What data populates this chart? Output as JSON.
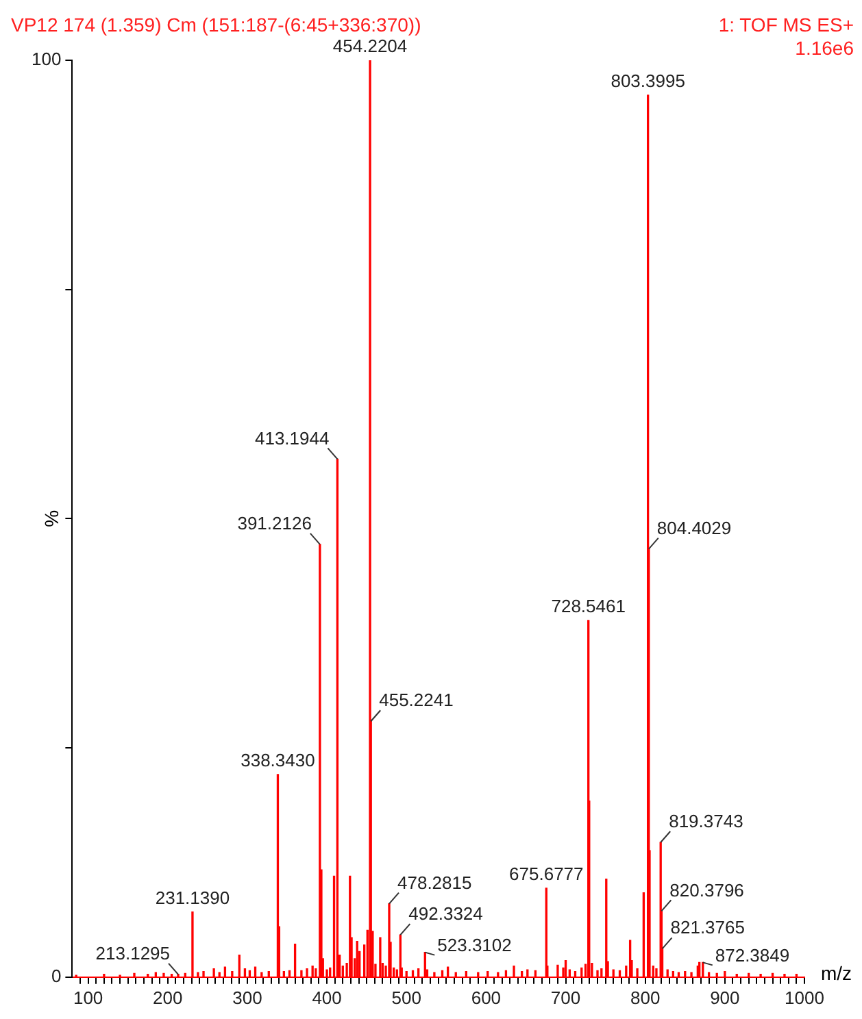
{
  "chart_data": {
    "type": "bar",
    "title": "VP12 174 (1.359) Cm (151:187-(6:45+336:370))",
    "xlabel": "m/z",
    "ylabel": "%",
    "color": "#ff0000",
    "x": [
      85,
      120,
      140,
      158,
      175,
      185,
      195,
      205,
      213.1295,
      222,
      231.139,
      238,
      245,
      258,
      265,
      272,
      281,
      290,
      297,
      303,
      310,
      318,
      327,
      338.343,
      340,
      346,
      353,
      360,
      368,
      375,
      382,
      386,
      391.2126,
      393,
      395,
      400,
      404,
      409,
      413.1944,
      416,
      420,
      425,
      429,
      431,
      435,
      438,
      441,
      447,
      451,
      454.2204,
      455.2241,
      457.5,
      461,
      467,
      470,
      474,
      478.2815,
      480,
      484,
      488,
      492.3324,
      494,
      500,
      508,
      515,
      523.3102,
      526,
      535,
      545,
      552,
      562,
      575,
      590,
      602,
      615,
      625,
      635,
      645,
      652,
      662,
      675.6777,
      677,
      690,
      697,
      700,
      705,
      712,
      720,
      725,
      728.5461,
      729.5,
      733,
      740,
      745,
      751,
      753,
      760,
      768,
      776,
      781,
      783,
      790,
      798,
      803.3995,
      804.4029,
      805.4,
      810,
      814,
      819.3743,
      820.3796,
      821.3765,
      828,
      835,
      842,
      850,
      858,
      866,
      868,
      872.3849,
      880,
      890,
      900,
      915,
      930,
      945,
      960,
      975,
      990
    ],
    "values": [
      0.2,
      0.3,
      0.2,
      0.4,
      0.3,
      0.5,
      0.4,
      0.3,
      0.3,
      0.4,
      7.1,
      0.5,
      0.6,
      0.9,
      0.5,
      1.1,
      0.6,
      2.4,
      0.9,
      0.7,
      1.1,
      0.5,
      0.6,
      22.1,
      5.5,
      0.6,
      0.7,
      3.6,
      0.7,
      0.9,
      1.2,
      0.9,
      47.2,
      11.7,
      2.0,
      0.8,
      1.0,
      11.0,
      56.5,
      2.4,
      1.2,
      1.5,
      11.0,
      4.3,
      2.0,
      3.9,
      2.8,
      3.5,
      5.1,
      100,
      27.9,
      5.0,
      1.4,
      4.3,
      1.5,
      1.2,
      8.0,
      3.8,
      1.0,
      0.8,
      4.6,
      1.0,
      0.6,
      0.7,
      0.9,
      2.7,
      0.8,
      0.5,
      0.7,
      1.1,
      0.5,
      0.6,
      0.5,
      0.6,
      0.5,
      0.7,
      1.2,
      0.6,
      0.8,
      0.7,
      9.7,
      1.2,
      1.3,
      1.0,
      1.8,
      0.8,
      0.6,
      1.0,
      1.4,
      38.9,
      19.2,
      1.5,
      0.7,
      0.9,
      10.7,
      1.7,
      0.8,
      0.7,
      1.2,
      4.0,
      1.8,
      0.9,
      9.2,
      96.2,
      46.7,
      13.8,
      1.2,
      0.9,
      14.7,
      7.2,
      3.1,
      0.8,
      0.6,
      0.5,
      0.6,
      0.5,
      1.2,
      1.6,
      1.6,
      0.5,
      0.4,
      0.6,
      0.3,
      0.4,
      0.3,
      0.4,
      0.3,
      0.3
    ],
    "xlim": [
      80,
      1000
    ],
    "xticks": [
      {
        "value": 90,
        "label": null
      },
      100,
      {
        "value": 110,
        "label": null
      },
      {
        "value": 120,
        "label": null
      },
      {
        "value": 130,
        "label": null
      },
      {
        "value": 140,
        "label": null
      },
      {
        "value": 150,
        "label": null
      },
      {
        "value": 160,
        "label": null
      },
      {
        "value": 170,
        "label": null
      },
      {
        "value": 180,
        "label": null
      },
      {
        "value": 190,
        "label": null
      },
      200,
      {
        "value": 210,
        "label": null
      },
      {
        "value": 220,
        "label": null
      },
      {
        "value": 230,
        "label": null
      },
      {
        "value": 240,
        "label": null
      },
      {
        "value": 250,
        "label": null
      },
      {
        "value": 260,
        "label": null
      },
      {
        "value": 270,
        "label": null
      },
      {
        "value": 280,
        "label": null
      },
      {
        "value": 290,
        "label": null
      },
      300,
      {
        "value": 310,
        "label": null
      },
      {
        "value": 320,
        "label": null
      },
      {
        "value": 330,
        "label": null
      },
      {
        "value": 340,
        "label": null
      },
      {
        "value": 350,
        "label": null
      },
      {
        "value": 360,
        "label": null
      },
      {
        "value": 370,
        "label": null
      },
      {
        "value": 380,
        "label": null
      },
      {
        "value": 390,
        "label": null
      },
      400,
      {
        "value": 410,
        "label": null
      },
      {
        "value": 420,
        "label": null
      },
      {
        "value": 430,
        "label": null
      },
      {
        "value": 440,
        "label": null
      },
      {
        "value": 450,
        "label": null
      },
      {
        "value": 460,
        "label": null
      },
      {
        "value": 470,
        "label": null
      },
      {
        "value": 480,
        "label": null
      },
      {
        "value": 490,
        "label": null
      },
      500,
      {
        "value": 510,
        "label": null
      },
      {
        "value": 520,
        "label": null
      },
      {
        "value": 530,
        "label": null
      },
      {
        "value": 540,
        "label": null
      },
      {
        "value": 550,
        "label": null
      },
      {
        "value": 560,
        "label": null
      },
      {
        "value": 570,
        "label": null
      },
      {
        "value": 580,
        "label": null
      },
      {
        "value": 590,
        "label": null
      },
      600,
      {
        "value": 610,
        "label": null
      },
      {
        "value": 620,
        "label": null
      },
      {
        "value": 630,
        "label": null
      },
      {
        "value": 640,
        "label": null
      },
      {
        "value": 650,
        "label": null
      },
      {
        "value": 660,
        "label": null
      },
      {
        "value": 670,
        "label": null
      },
      {
        "value": 680,
        "label": null
      },
      {
        "value": 690,
        "label": null
      },
      700,
      {
        "value": 710,
        "label": null
      },
      {
        "value": 720,
        "label": null
      },
      {
        "value": 730,
        "label": null
      },
      {
        "value": 740,
        "label": null
      },
      {
        "value": 750,
        "label": null
      },
      {
        "value": 760,
        "label": null
      },
      {
        "value": 770,
        "label": null
      },
      {
        "value": 780,
        "label": null
      },
      {
        "value": 790,
        "label": null
      },
      800,
      {
        "value": 810,
        "label": null
      },
      {
        "value": 820,
        "label": null
      },
      {
        "value": 830,
        "label": null
      },
      {
        "value": 840,
        "label": null
      },
      {
        "value": 850,
        "label": null
      },
      {
        "value": 860,
        "label": null
      },
      {
        "value": 870,
        "label": null
      },
      {
        "value": 880,
        "label": null
      },
      {
        "value": 890,
        "label": null
      },
      900,
      {
        "value": 910,
        "label": null
      },
      {
        "value": 920,
        "label": null
      },
      {
        "value": 930,
        "label": null
      },
      {
        "value": 940,
        "label": null
      },
      {
        "value": 950,
        "label": null
      },
      {
        "value": 960,
        "label": null
      },
      {
        "value": 970,
        "label": null
      },
      {
        "value": 980,
        "label": null
      },
      {
        "value": 990,
        "label": null
      },
      1000
    ],
    "ylim": [
      0,
      100
    ],
    "yticks": [
      0,
      {
        "value": 25,
        "label": null
      },
      {
        "value": 50,
        "label": null
      },
      {
        "value": 75,
        "label": null
      },
      100
    ],
    "annotations": [
      "1: TOF MS ES+",
      "1.16e6",
      {
        "text": "213.1295",
        "x": 213.1295,
        "y": 0.3
      },
      {
        "text": "231.1390",
        "x": 231.139,
        "y": 7.1
      },
      {
        "text": "338.3430",
        "x": 338.343,
        "y": 22.1
      },
      {
        "text": "391.2126",
        "x": 391.2126,
        "y": 47.2
      },
      {
        "text": "413.1944",
        "x": 413.1944,
        "y": 56.5
      },
      {
        "text": "454.2204",
        "x": 454.2204,
        "y": 100
      },
      {
        "text": "455.2241",
        "x": 455.2241,
        "y": 27.9
      },
      {
        "text": "478.2815",
        "x": 478.2815,
        "y": 8.0
      },
      {
        "text": "492.3324",
        "x": 492.3324,
        "y": 4.6
      },
      {
        "text": "523.3102",
        "x": 523.3102,
        "y": 2.7
      },
      {
        "text": "675.6777",
        "x": 675.6777,
        "y": 9.7
      },
      {
        "text": "728.5461",
        "x": 728.5461,
        "y": 38.9
      },
      {
        "text": "803.3995",
        "x": 803.3995,
        "y": 96.2
      },
      {
        "text": "804.4029",
        "x": 804.4029,
        "y": 46.7
      },
      {
        "text": "819.3743",
        "x": 819.3743,
        "y": 14.7
      },
      {
        "text": "820.3796",
        "x": 820.3796,
        "y": 7.2
      },
      {
        "text": "821.3765",
        "x": 821.3765,
        "y": 3.1
      },
      {
        "text": "872.3849",
        "x": 872.3849,
        "y": 1.6
      }
    ],
    "legend": false
  }
}
